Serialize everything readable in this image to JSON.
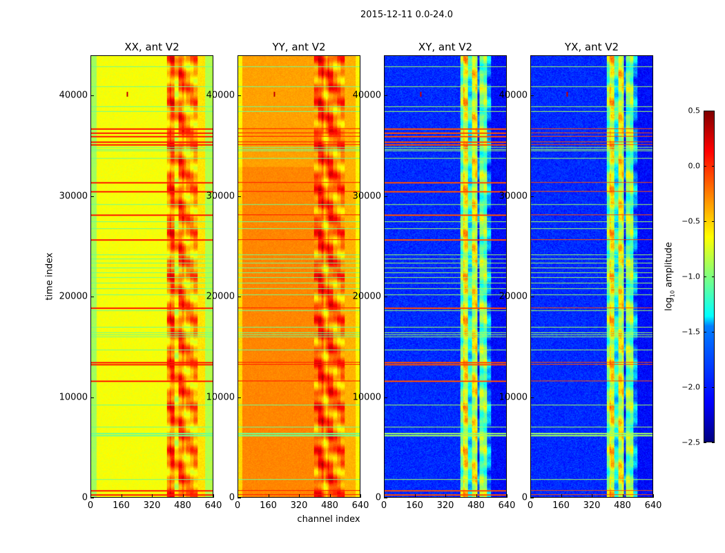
{
  "suptitle": "2015-12-11 0.0-24.0",
  "chart_data": {
    "type": "heatmap",
    "ylabel": "time index",
    "xlabel": "channel index",
    "xlim": [
      0,
      640
    ],
    "ylim": [
      0,
      44000
    ],
    "xticks": [
      "0",
      "160",
      "320",
      "480",
      "640"
    ],
    "yticks": [
      "0",
      "10000",
      "20000",
      "30000",
      "40000"
    ],
    "colorbar": {
      "label": "log10 amplitude",
      "label_main": "log",
      "label_sub": "10",
      "label_rest": " amplitude",
      "range": [
        -2.5,
        0.5
      ],
      "ticks": [
        "0.5",
        "0.0",
        "−0.5",
        "−1.0",
        "−1.5",
        "−2.0",
        "−2.5"
      ],
      "tick_values": [
        0.5,
        0,
        -0.5,
        -1,
        -1.5,
        -2,
        -2.5
      ],
      "colormap": "jet"
    },
    "flagged_rows_high": [
      300,
      700,
      11600,
      13300,
      13500,
      18900,
      25700,
      28200,
      30500,
      31400,
      35200,
      35500,
      36000,
      36400,
      36800
    ],
    "flagged_rows_low": [
      1800,
      6100,
      6200,
      6300,
      6400,
      7000,
      9200,
      14700,
      16000,
      16200,
      16400,
      17000,
      18600,
      20200,
      20800,
      21400,
      21900,
      22400,
      22900,
      23400,
      23800,
      24200,
      26800,
      27500,
      29200,
      33800,
      34600,
      34750,
      34900,
      38500,
      39000,
      41000,
      43000
    ],
    "panels": [
      {
        "title": "XX, ant V2",
        "channel_profile": [
          [
            0,
            30,
            -0.9
          ],
          [
            30,
            400,
            -0.65
          ],
          [
            400,
            415,
            -0.3
          ],
          [
            415,
            440,
            -0.1
          ],
          [
            440,
            460,
            -0.5
          ],
          [
            460,
            490,
            -0.15
          ],
          [
            490,
            560,
            -0.35
          ],
          [
            560,
            600,
            -0.55
          ],
          [
            600,
            640,
            -0.85
          ]
        ]
      },
      {
        "title": "YY, ant V2",
        "channel_profile": [
          [
            0,
            20,
            -0.6
          ],
          [
            20,
            400,
            -0.35
          ],
          [
            400,
            420,
            -0.2
          ],
          [
            420,
            450,
            -0.05
          ],
          [
            450,
            470,
            -0.3
          ],
          [
            470,
            500,
            -0.1
          ],
          [
            500,
            560,
            -0.25
          ],
          [
            560,
            620,
            -0.4
          ],
          [
            620,
            640,
            -0.6
          ]
        ]
      },
      {
        "title": "XY, ant V2",
        "channel_profile": [
          [
            0,
            400,
            -2.0
          ],
          [
            400,
            415,
            -1.0
          ],
          [
            415,
            440,
            -0.6
          ],
          [
            440,
            460,
            -1.3
          ],
          [
            460,
            490,
            -0.7
          ],
          [
            490,
            500,
            -1.9
          ],
          [
            500,
            540,
            -1.0
          ],
          [
            540,
            560,
            -1.7
          ],
          [
            560,
            640,
            -2.1
          ]
        ]
      },
      {
        "title": "YX, ant V2",
        "channel_profile": [
          [
            0,
            400,
            -2.0
          ],
          [
            400,
            415,
            -1.0
          ],
          [
            415,
            440,
            -0.6
          ],
          [
            440,
            460,
            -1.3
          ],
          [
            460,
            490,
            -0.7
          ],
          [
            490,
            500,
            -1.9
          ],
          [
            500,
            540,
            -1.0
          ],
          [
            540,
            560,
            -1.7
          ],
          [
            560,
            640,
            -2.1
          ]
        ]
      }
    ]
  }
}
